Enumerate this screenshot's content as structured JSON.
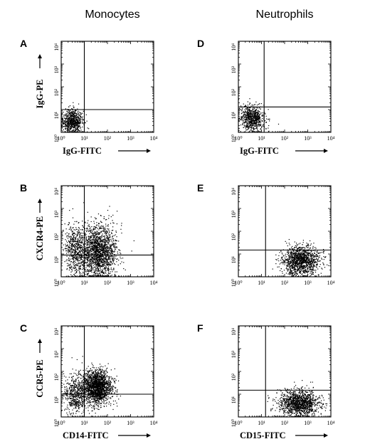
{
  "columns": [
    {
      "title": "Monocytes"
    },
    {
      "title": "Neutrophils"
    }
  ],
  "chart_data": [
    {
      "panel": "A",
      "type": "scatter",
      "scale": "log",
      "xlabel": "IgG-FITC",
      "ylabel": "IgG-PE",
      "xlim": [
        1,
        10000
      ],
      "ylim": [
        1,
        10000
      ],
      "x_ticks": [
        "10⁰",
        "10¹",
        "10²",
        "10³",
        "10⁴"
      ],
      "y_ticks": [
        "10⁰",
        "10¹",
        "10²",
        "10³",
        "10⁴"
      ],
      "quadrant_gate": {
        "x": 10,
        "y": 10
      },
      "clusters": [
        {
          "x_range": [
            1,
            10
          ],
          "y_range": [
            1,
            12
          ],
          "x_center": 3,
          "y_center": 3,
          "density": "high",
          "n": 700
        }
      ]
    },
    {
      "panel": "B",
      "type": "scatter",
      "scale": "log",
      "xlabel": "",
      "ylabel": "CXCR4-PE",
      "xlim": [
        1,
        10000
      ],
      "ylim": [
        1,
        10000
      ],
      "x_ticks": [
        "10⁰",
        "10¹",
        "10²",
        "10³",
        "10⁴"
      ],
      "y_ticks": [
        "10⁰",
        "10¹",
        "10²",
        "10³",
        "10⁴"
      ],
      "quadrant_gate": {
        "x": 10,
        "y": 9
      },
      "clusters": [
        {
          "x_range": [
            2,
            100
          ],
          "y_range": [
            1,
            400
          ],
          "x_center": 40,
          "y_center": 12,
          "density": "high",
          "n": 1800
        },
        {
          "x_range": [
            1,
            10
          ],
          "y_range": [
            1,
            200
          ],
          "x_center": 4,
          "y_center": 15,
          "density": "medium",
          "n": 500
        }
      ]
    },
    {
      "panel": "C",
      "type": "scatter",
      "scale": "log",
      "xlabel": "CD14-FITC",
      "ylabel": "CCR5-PE",
      "xlim": [
        1,
        10000
      ],
      "ylim": [
        1,
        10000
      ],
      "x_ticks": [
        "10⁰",
        "10¹",
        "10²",
        "10³",
        "10⁴"
      ],
      "y_ticks": [
        "10⁰",
        "10¹",
        "10²",
        "10³",
        "10⁴"
      ],
      "quadrant_gate": {
        "x": 10,
        "y": 10
      },
      "clusters": [
        {
          "x_range": [
            5,
            100
          ],
          "y_range": [
            2,
            80
          ],
          "x_center": 35,
          "y_center": 20,
          "density": "high",
          "n": 1800
        },
        {
          "x_range": [
            1,
            10
          ],
          "y_range": [
            1,
            60
          ],
          "x_center": 4,
          "y_center": 10,
          "density": "medium",
          "n": 500
        }
      ]
    },
    {
      "panel": "D",
      "type": "scatter",
      "scale": "log",
      "xlabel": "IgG-FITC",
      "ylabel": "",
      "xlim": [
        1,
        10000
      ],
      "ylim": [
        1,
        10000
      ],
      "x_ticks": [
        "10⁰",
        "10¹",
        "10²",
        "10³",
        "10⁴"
      ],
      "y_ticks": [
        "10⁰",
        "10¹",
        "10²",
        "10³",
        "10⁴"
      ],
      "quadrant_gate": {
        "x": 13,
        "y": 13
      },
      "clusters": [
        {
          "x_range": [
            1,
            13
          ],
          "y_range": [
            1,
            13
          ],
          "x_center": 4,
          "y_center": 4,
          "density": "high",
          "n": 700
        }
      ]
    },
    {
      "panel": "E",
      "type": "scatter",
      "scale": "log",
      "xlabel": "",
      "ylabel": "",
      "xlim": [
        1,
        10000
      ],
      "ylim": [
        1,
        10000
      ],
      "x_ticks": [
        "10⁰",
        "10¹",
        "10²",
        "10³",
        "10⁴"
      ],
      "y_ticks": [
        "10⁰",
        "10¹",
        "10²",
        "10³",
        "10⁴"
      ],
      "quadrant_gate": {
        "x": 15,
        "y": 15
      },
      "clusters": [
        {
          "x_range": [
            40,
            2000
          ],
          "y_range": [
            1,
            20
          ],
          "x_center": 500,
          "y_center": 5,
          "density": "high",
          "n": 1300
        }
      ]
    },
    {
      "panel": "F",
      "type": "scatter",
      "scale": "log",
      "xlabel": "CD15-FITC",
      "ylabel": "",
      "xlim": [
        1,
        10000
      ],
      "ylim": [
        1,
        10000
      ],
      "x_ticks": [
        "10⁰",
        "10¹",
        "10²",
        "10³",
        "10⁴"
      ],
      "y_ticks": [
        "10⁰",
        "10¹",
        "10²",
        "10³",
        "10⁴"
      ],
      "quadrant_gate": {
        "x": 15,
        "y": 15
      },
      "clusters": [
        {
          "x_range": [
            30,
            2000
          ],
          "y_range": [
            1,
            15
          ],
          "x_center": 400,
          "y_center": 4,
          "density": "high",
          "n": 1300
        }
      ]
    }
  ]
}
